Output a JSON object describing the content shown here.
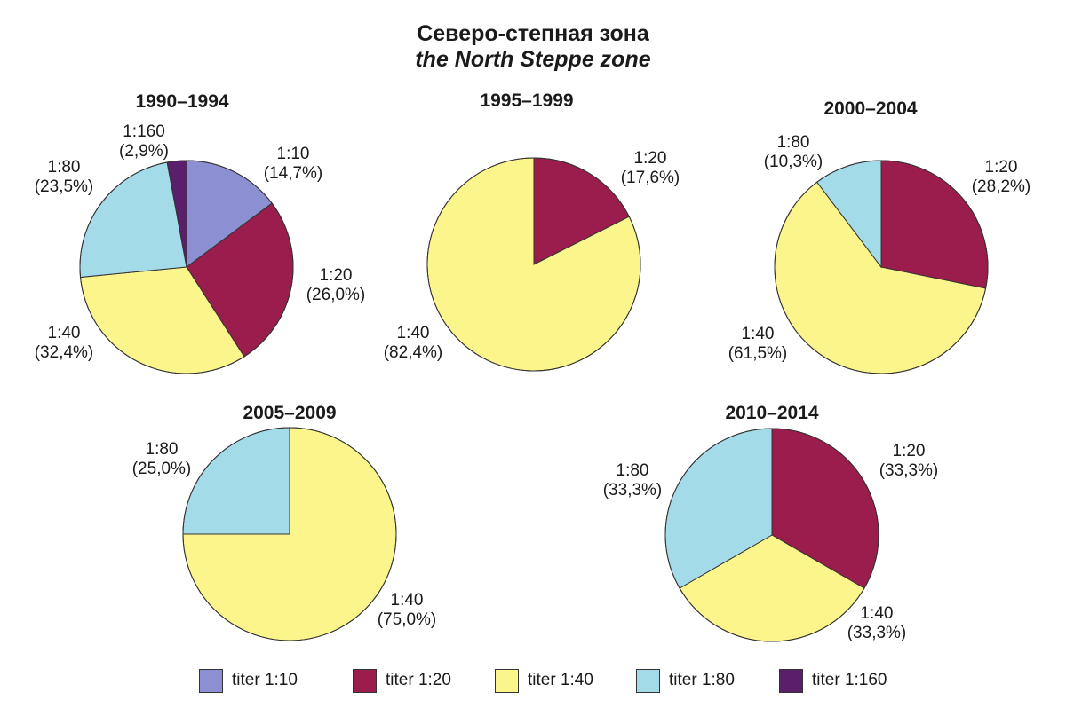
{
  "title": {
    "line1": "Северо-степная зона",
    "line2": "the North Steppe zone"
  },
  "colors": {
    "1:10": "#8c8fd1",
    "1:20": "#9b1d4d",
    "1:40": "#fbf58c",
    "1:80": "#a4dbe8",
    "1:160": "#5b1e6b"
  },
  "legend": [
    {
      "key": "1:10",
      "label": "titer 1:10"
    },
    {
      "key": "1:20",
      "label": "titer 1:20"
    },
    {
      "key": "1:40",
      "label": "titer 1:40"
    },
    {
      "key": "1:80",
      "label": "titer 1:80"
    },
    {
      "key": "1:160",
      "label": "titer 1:160"
    }
  ],
  "chart_data": [
    {
      "type": "pie",
      "title": "1990–1994",
      "slices": [
        {
          "key": "1:10",
          "value": 14.7,
          "label": "1:10",
          "pct": "(14,7%)"
        },
        {
          "key": "1:20",
          "value": 26.0,
          "label": "1:20",
          "pct": "(26,0%)"
        },
        {
          "key": "1:40",
          "value": 32.4,
          "label": "1:40",
          "pct": "(32,4%)"
        },
        {
          "key": "1:80",
          "value": 23.5,
          "label": "1:80",
          "pct": "(23,5%)"
        },
        {
          "key": "1:160",
          "value": 2.9,
          "label": "1:160",
          "pct": "(2,9%)"
        }
      ]
    },
    {
      "type": "pie",
      "title": "1995–1999",
      "slices": [
        {
          "key": "1:20",
          "value": 17.6,
          "label": "1:20",
          "pct": "(17,6%)"
        },
        {
          "key": "1:40",
          "value": 82.4,
          "label": "1:40",
          "pct": "(82,4%)"
        }
      ]
    },
    {
      "type": "pie",
      "title": "2000–2004",
      "slices": [
        {
          "key": "1:20",
          "value": 28.2,
          "label": "1:20",
          "pct": "(28,2%)"
        },
        {
          "key": "1:40",
          "value": 61.5,
          "label": "1:40",
          "pct": "(61,5%)"
        },
        {
          "key": "1:80",
          "value": 10.3,
          "label": "1:80",
          "pct": "(10,3%)"
        }
      ]
    },
    {
      "type": "pie",
      "title": "2005–2009",
      "slices": [
        {
          "key": "1:40",
          "value": 75.0,
          "label": "1:40",
          "pct": "(75,0%)"
        },
        {
          "key": "1:80",
          "value": 25.0,
          "label": "1:80",
          "pct": "(25,0%)"
        }
      ]
    },
    {
      "type": "pie",
      "title": "2010–2014",
      "slices": [
        {
          "key": "1:20",
          "value": 33.3,
          "label": "1:20",
          "pct": "(33,3%)"
        },
        {
          "key": "1:40",
          "value": 33.3,
          "label": "1:40",
          "pct": "(33,3%)"
        },
        {
          "key": "1:80",
          "value": 33.3,
          "label": "1:80",
          "pct": "(33,3%)"
        }
      ]
    }
  ]
}
